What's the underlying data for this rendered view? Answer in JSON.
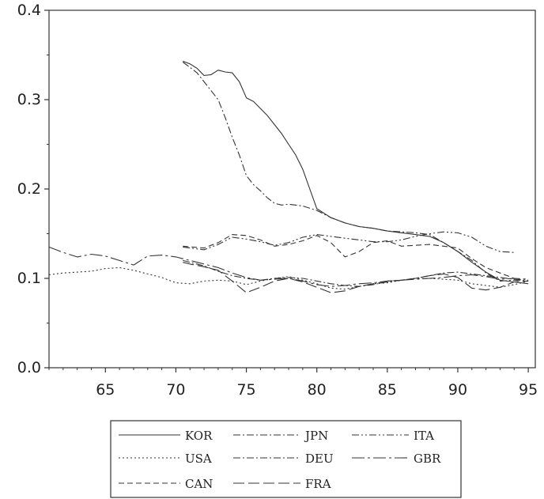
{
  "chart_data": {
    "type": "line",
    "title": "",
    "xlabel": "",
    "ylabel": "",
    "xlim": [
      61,
      95.5
    ],
    "ylim": [
      0.0,
      0.4
    ],
    "x_ticks": [
      65,
      70,
      75,
      80,
      85,
      90,
      95
    ],
    "y_ticks": [
      0.0,
      0.1,
      0.2,
      0.3,
      0.4
    ],
    "x_tick_labels": [
      "65",
      "70",
      "75",
      "80",
      "85",
      "90",
      "95"
    ],
    "y_tick_labels": [
      "0.0",
      "0.1",
      "0.2",
      "0.3",
      "0.4"
    ],
    "grid": false,
    "legend_position": "bottom",
    "series": [
      {
        "name": "KOR",
        "dash": "solid",
        "x": [
          70.5,
          71,
          71.5,
          72,
          72.5,
          73,
          73.5,
          74,
          74.5,
          75,
          75.5,
          76,
          76.5,
          77,
          77.5,
          78,
          78.5,
          79,
          79.5,
          80,
          81,
          82,
          83,
          84,
          85,
          86,
          87,
          88,
          89,
          90,
          91,
          92,
          93,
          94,
          95
        ],
        "y": [
          0.343,
          0.34,
          0.335,
          0.327,
          0.328,
          0.333,
          0.331,
          0.33,
          0.32,
          0.302,
          0.298,
          0.29,
          0.282,
          0.272,
          0.262,
          0.25,
          0.238,
          0.222,
          0.2,
          0.178,
          0.168,
          0.162,
          0.158,
          0.156,
          0.153,
          0.151,
          0.149,
          0.147,
          0.14,
          0.13,
          0.118,
          0.107,
          0.098,
          0.096,
          0.094
        ]
      },
      {
        "name": "JPN",
        "dash": "dashdot",
        "x": [
          70.5,
          71,
          71.5,
          72,
          72.5,
          73,
          73.5,
          74,
          74.5,
          75,
          75.5,
          76,
          76.5,
          77,
          77.5,
          78,
          79,
          80,
          81,
          82,
          83,
          84,
          85,
          86,
          87,
          88,
          89,
          90,
          91,
          92,
          93,
          94,
          95
        ],
        "y": [
          0.342,
          0.336,
          0.33,
          0.32,
          0.31,
          0.3,
          0.28,
          0.258,
          0.238,
          0.215,
          0.205,
          0.198,
          0.19,
          0.184,
          0.182,
          0.183,
          0.181,
          0.176,
          0.168,
          0.162,
          0.158,
          0.156,
          0.153,
          0.152,
          0.151,
          0.149,
          0.14,
          0.13,
          0.12,
          0.106,
          0.097,
          0.098,
          0.097
        ]
      },
      {
        "name": "ITA",
        "dash": "dashdotdot",
        "x": [
          70.5,
          72,
          73,
          74,
          75,
          76,
          77,
          78,
          79,
          80,
          81,
          82,
          83,
          84,
          85,
          86,
          87,
          88,
          89,
          90,
          91,
          92,
          93,
          94
        ],
        "y": [
          0.135,
          0.132,
          0.138,
          0.146,
          0.144,
          0.141,
          0.137,
          0.14,
          0.146,
          0.149,
          0.147,
          0.145,
          0.143,
          0.141,
          0.141,
          0.143,
          0.147,
          0.15,
          0.152,
          0.151,
          0.146,
          0.136,
          0.13,
          0.129
        ]
      },
      {
        "name": "USA",
        "dash": "dotted",
        "x": [
          61,
          62,
          63,
          64,
          65,
          66,
          67,
          68,
          69,
          70,
          71,
          72,
          73,
          74,
          75,
          76,
          77,
          78,
          79,
          80,
          81,
          82,
          83,
          84,
          85,
          86,
          87,
          88,
          89,
          90,
          91,
          92,
          93,
          94,
          95
        ],
        "y": [
          0.104,
          0.106,
          0.107,
          0.108,
          0.111,
          0.112,
          0.109,
          0.105,
          0.101,
          0.095,
          0.094,
          0.097,
          0.098,
          0.097,
          0.093,
          0.097,
          0.1,
          0.102,
          0.098,
          0.094,
          0.089,
          0.088,
          0.091,
          0.094,
          0.095,
          0.098,
          0.1,
          0.1,
          0.099,
          0.098,
          0.094,
          0.092,
          0.09,
          0.093,
          0.097
        ]
      },
      {
        "name": "DEU",
        "dash": "dashdot",
        "x": [
          70.5,
          71,
          72,
          73,
          74,
          75,
          76,
          77,
          78,
          79,
          80,
          81,
          82,
          83,
          84,
          85,
          86,
          87,
          88,
          89,
          90,
          91,
          92,
          93,
          94,
          95
        ],
        "y": [
          0.12,
          0.118,
          0.114,
          0.108,
          0.103,
          0.1,
          0.098,
          0.1,
          0.101,
          0.1,
          0.097,
          0.094,
          0.092,
          0.091,
          0.093,
          0.096,
          0.098,
          0.1,
          0.103,
          0.106,
          0.107,
          0.105,
          0.103,
          0.101,
          0.099,
          0.098
        ]
      },
      {
        "name": "GBR",
        "dash": "longdashdot",
        "x": [
          61,
          62,
          63,
          64,
          65,
          66,
          67,
          68,
          69,
          70,
          71,
          72,
          73,
          74,
          75,
          76,
          77,
          78,
          79,
          80,
          81,
          82,
          83,
          84,
          85,
          86,
          87,
          88,
          89,
          90,
          91,
          92,
          93,
          94,
          95
        ],
        "y": [
          0.135,
          0.129,
          0.124,
          0.127,
          0.125,
          0.12,
          0.115,
          0.125,
          0.126,
          0.124,
          0.12,
          0.116,
          0.112,
          0.106,
          0.101,
          0.098,
          0.099,
          0.1,
          0.097,
          0.093,
          0.091,
          0.092,
          0.094,
          0.095,
          0.097,
          0.098,
          0.099,
          0.1,
          0.101,
          0.103,
          0.104,
          0.102,
          0.099,
          0.1,
          0.099
        ]
      },
      {
        "name": "CAN",
        "dash": "dashed",
        "x": [
          70.5,
          72,
          73,
          74,
          75,
          76,
          77,
          78,
          79,
          80,
          81,
          82,
          83,
          84,
          85,
          86,
          87,
          88,
          89,
          90,
          91,
          92,
          93,
          94
        ],
        "y": [
          0.136,
          0.134,
          0.14,
          0.149,
          0.148,
          0.143,
          0.136,
          0.138,
          0.142,
          0.148,
          0.14,
          0.124,
          0.13,
          0.14,
          0.142,
          0.136,
          0.137,
          0.138,
          0.136,
          0.134,
          0.122,
          0.112,
          0.106,
          0.1
        ]
      },
      {
        "name": "FRA",
        "dash": "longdash",
        "x": [
          70.5,
          71,
          72,
          73,
          74,
          75,
          76,
          77,
          78,
          79,
          80,
          81,
          82,
          83,
          84,
          85,
          86,
          87,
          88,
          89,
          90,
          91,
          92,
          93,
          94,
          95
        ],
        "y": [
          0.118,
          0.116,
          0.113,
          0.109,
          0.097,
          0.084,
          0.09,
          0.097,
          0.1,
          0.096,
          0.09,
          0.084,
          0.086,
          0.091,
          0.094,
          0.097,
          0.098,
          0.1,
          0.103,
          0.105,
          0.101,
          0.089,
          0.087,
          0.09,
          0.096,
          0.097
        ]
      }
    ],
    "legend_layout": [
      [
        "KOR",
        "JPN",
        "ITA"
      ],
      [
        "USA",
        "DEU",
        "GBR"
      ],
      [
        "CAN",
        "FRA"
      ]
    ]
  }
}
